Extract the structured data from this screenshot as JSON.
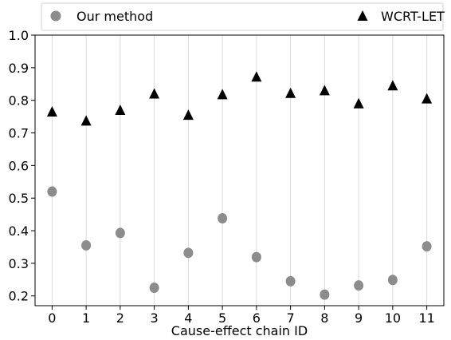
{
  "chart_data": {
    "type": "scatter",
    "x": [
      0,
      1,
      2,
      3,
      4,
      5,
      6,
      7,
      8,
      9,
      10,
      11
    ],
    "series": [
      {
        "name": "Our method",
        "marker": "circle",
        "color": "#8c8c8c",
        "values": [
          0.52,
          0.355,
          0.393,
          0.225,
          0.332,
          0.438,
          0.319,
          0.245,
          0.204,
          0.232,
          0.249,
          0.352
        ]
      },
      {
        "name": "WCRT-LET",
        "marker": "triangle",
        "color": "#000000",
        "values": [
          0.765,
          0.737,
          0.77,
          0.82,
          0.755,
          0.818,
          0.872,
          0.822,
          0.83,
          0.79,
          0.845,
          0.805
        ]
      }
    ],
    "xticks": [
      "0",
      "1",
      "2",
      "3",
      "4",
      "5",
      "6",
      "7",
      "8",
      "9",
      "10",
      "11"
    ],
    "yticks": [
      "0.2",
      "0.3",
      "0.4",
      "0.5",
      "0.6",
      "0.7",
      "0.8",
      "0.9",
      "1.0"
    ],
    "xlabel": "Cause-effect chain ID",
    "ylabel": "",
    "xlim": [
      -0.5,
      11.5
    ],
    "ylim": [
      0.17,
      1.0
    ],
    "grid": "vertical",
    "legend_position": "top"
  }
}
